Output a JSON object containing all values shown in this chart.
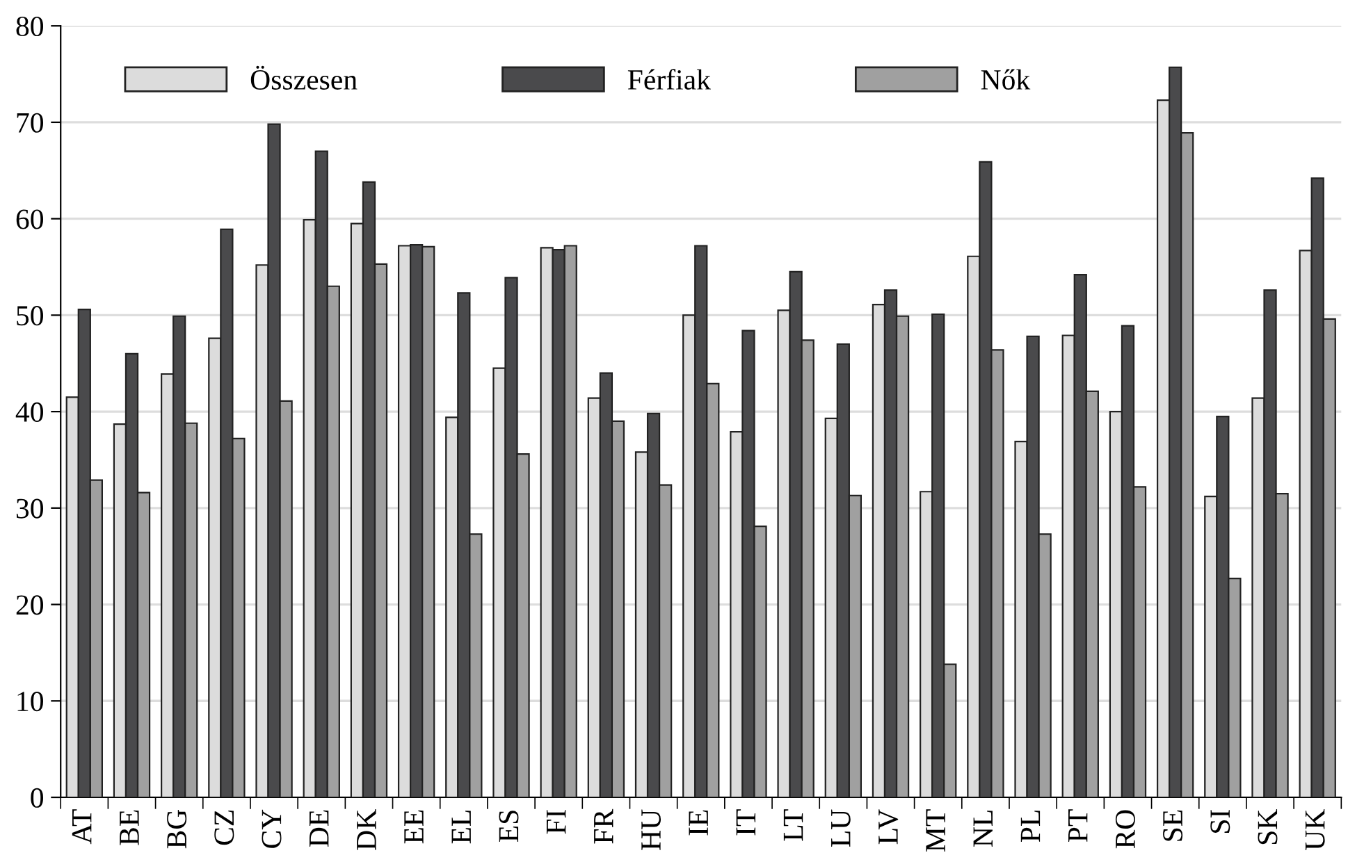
{
  "chart_data": {
    "type": "bar",
    "categories": [
      "AT",
      "BE",
      "BG",
      "CZ",
      "CY",
      "DE",
      "DK",
      "EE",
      "EL",
      "ES",
      "FI",
      "FR",
      "HU",
      "IE",
      "IT",
      "LT",
      "LU",
      "LV",
      "MT",
      "NL",
      "PL",
      "PT",
      "RO",
      "SE",
      "SI",
      "SK",
      "UK"
    ],
    "series": [
      {
        "name": "Összesen",
        "color": "#dcdcdc",
        "values": [
          41.5,
          38.7,
          43.9,
          47.6,
          55.2,
          59.9,
          59.5,
          57.2,
          39.4,
          44.5,
          57.0,
          41.4,
          35.8,
          50.0,
          37.9,
          50.5,
          39.3,
          51.1,
          31.7,
          56.1,
          36.9,
          47.9,
          40.0,
          72.3,
          31.2,
          41.4,
          56.7
        ]
      },
      {
        "name": "Férfiak",
        "color": "#4a4a4c",
        "values": [
          50.6,
          46.0,
          49.9,
          58.9,
          69.8,
          67.0,
          63.8,
          57.3,
          52.3,
          53.9,
          56.8,
          44.0,
          39.8,
          57.2,
          48.4,
          54.5,
          47.0,
          52.6,
          50.1,
          65.9,
          47.8,
          54.2,
          48.9,
          75.7,
          39.5,
          52.6,
          64.2
        ]
      },
      {
        "name": "Nők",
        "color": "#a0a0a0",
        "values": [
          32.9,
          31.6,
          38.8,
          37.2,
          41.1,
          53.0,
          55.3,
          57.1,
          27.3,
          35.6,
          57.2,
          39.0,
          32.4,
          42.9,
          28.1,
          47.4,
          31.3,
          49.9,
          13.8,
          46.4,
          27.3,
          42.1,
          32.2,
          68.9,
          22.7,
          31.5,
          49.6
        ]
      }
    ],
    "ylim": [
      0,
      80
    ],
    "yticks": [
      0,
      10,
      20,
      30,
      40,
      50,
      60,
      70,
      80
    ],
    "grid": "y",
    "legend": "top left"
  }
}
